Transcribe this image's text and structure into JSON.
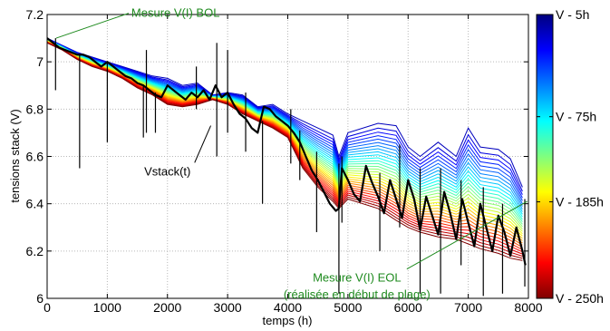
{
  "chart_data": {
    "type": "line",
    "xlabel": "temps (h)",
    "ylabel": "tensions stack (V)",
    "xlim": [
      0,
      8000
    ],
    "ylim": [
      6,
      7.2
    ],
    "xticks": [
      0,
      1000,
      2000,
      3000,
      4000,
      5000,
      6000,
      7000,
      8000
    ],
    "yticks": [
      6,
      6.2,
      6.4,
      6.6,
      6.8,
      7,
      7.2
    ],
    "xtick_labels": [
      "0",
      "1000",
      "2000",
      "3000",
      "4000",
      "5000",
      "6000",
      "7000",
      "8000"
    ],
    "ytick_labels": [
      "6",
      "6.2",
      "6.4",
      "6.6",
      "6.8",
      "7",
      "7.2"
    ],
    "grid": true,
    "colorbar": {
      "colormap": "jet",
      "position": "right",
      "labels": [
        "V - 5h",
        "V - 75h",
        "V - 185h",
        "V - 250h"
      ],
      "label_fractions": [
        0.0,
        0.36,
        0.66,
        1.0
      ]
    },
    "curve_family": {
      "count": 30,
      "top_name": "V - 5h",
      "bottom_name": "V - 250h",
      "top": {
        "x": [
          0,
          250,
          500,
          750,
          1000,
          1250,
          1500,
          1750,
          2000,
          2250,
          2500,
          2750,
          3000,
          3250,
          3500,
          3750,
          4000,
          4250,
          4500,
          4750,
          4850,
          5000,
          5500,
          5800,
          6000,
          6200,
          6500,
          6800,
          7000,
          7200,
          7500,
          7700,
          7900
        ],
        "y": [
          7.1,
          7.07,
          7.04,
          7.02,
          7.0,
          6.98,
          6.96,
          6.94,
          6.93,
          6.9,
          6.91,
          6.86,
          6.87,
          6.86,
          6.81,
          6.82,
          6.78,
          6.75,
          6.72,
          6.69,
          6.6,
          6.7,
          6.74,
          6.73,
          6.64,
          6.6,
          6.66,
          6.6,
          6.72,
          6.64,
          6.63,
          6.59,
          6.47
        ]
      },
      "bottom": {
        "x": [
          0,
          250,
          500,
          750,
          1000,
          1250,
          1500,
          1750,
          2000,
          2250,
          2500,
          2750,
          3000,
          3250,
          3500,
          3750,
          4000,
          4250,
          4500,
          4750,
          4850,
          5000,
          5500,
          5800,
          6000,
          6200,
          6500,
          6800,
          7000,
          7200,
          7500,
          7700,
          7900
        ],
        "y": [
          7.08,
          7.05,
          7.01,
          6.98,
          6.96,
          6.93,
          6.89,
          6.86,
          6.82,
          6.81,
          6.82,
          6.84,
          6.82,
          6.78,
          6.75,
          6.72,
          6.68,
          6.55,
          6.47,
          6.41,
          6.38,
          6.42,
          6.38,
          6.33,
          6.3,
          6.28,
          6.26,
          6.25,
          6.23,
          6.21,
          6.19,
          6.17,
          6.16
        ]
      }
    },
    "series": [
      {
        "name": "Vstack(t)",
        "color": "#000000",
        "x": [
          0,
          100,
          200,
          300,
          400,
          500,
          600,
          700,
          800,
          900,
          1000,
          1100,
          1200,
          1300,
          1400,
          1500,
          1600,
          1700,
          1800,
          1900,
          2000,
          2100,
          2200,
          2300,
          2400,
          2500,
          2600,
          2700,
          2800,
          2900,
          3000,
          3100,
          3200,
          3300,
          3400,
          3500,
          3600,
          3700,
          3800,
          3900,
          4000,
          4100,
          4200,
          4300,
          4400,
          4500,
          4600,
          4700,
          4800,
          4850,
          4900,
          5000,
          5100,
          5200,
          5300,
          5400,
          5500,
          5600,
          5700,
          5800,
          5900,
          6000,
          6100,
          6200,
          6300,
          6400,
          6500,
          6600,
          6700,
          6800,
          6900,
          7000,
          7100,
          7200,
          7300,
          7400,
          7500,
          7600,
          7700,
          7800,
          7900,
          7950
        ],
        "y": [
          7.1,
          7.08,
          7.06,
          7.05,
          7.04,
          7.03,
          7.03,
          7.02,
          7.0,
          6.98,
          7.0,
          6.98,
          6.96,
          6.94,
          6.93,
          6.91,
          6.9,
          6.88,
          6.86,
          6.85,
          6.9,
          6.88,
          6.86,
          6.84,
          6.87,
          6.85,
          6.88,
          6.84,
          6.9,
          6.85,
          6.87,
          6.82,
          6.78,
          6.76,
          6.72,
          6.7,
          6.81,
          6.8,
          6.77,
          6.75,
          6.73,
          6.7,
          6.66,
          6.6,
          6.54,
          6.5,
          6.45,
          6.4,
          6.37,
          6.38,
          6.55,
          6.5,
          6.44,
          6.41,
          6.56,
          6.49,
          6.43,
          6.36,
          6.5,
          6.42,
          6.34,
          6.5,
          6.42,
          6.29,
          6.43,
          6.35,
          6.27,
          6.45,
          6.36,
          6.25,
          6.42,
          6.32,
          6.22,
          6.4,
          6.3,
          6.2,
          6.35,
          6.28,
          6.18,
          6.3,
          6.2,
          6.14
        ]
      }
    ],
    "spikes": [
      {
        "x": 140,
        "low": 6.88,
        "high": 7.1
      },
      {
        "x": 540,
        "low": 6.55,
        "high": 7.03
      },
      {
        "x": 1000,
        "low": 6.66,
        "high": 7.0
      },
      {
        "x": 1600,
        "low": 6.68,
        "high": 6.9
      },
      {
        "x": 1650,
        "low": 6.7,
        "high": 7.05
      },
      {
        "x": 1800,
        "low": 6.7,
        "high": 6.87
      },
      {
        "x": 2480,
        "low": 6.8,
        "high": 6.98
      },
      {
        "x": 2820,
        "low": 6.6,
        "high": 7.08
      },
      {
        "x": 3000,
        "low": 6.7,
        "high": 7.05
      },
      {
        "x": 3300,
        "low": 6.62,
        "high": 6.87
      },
      {
        "x": 3580,
        "low": 6.4,
        "high": 6.75
      },
      {
        "x": 4050,
        "low": 6.57,
        "high": 6.8
      },
      {
        "x": 4200,
        "low": 6.5,
        "high": 6.71
      },
      {
        "x": 4480,
        "low": 6.28,
        "high": 6.62
      },
      {
        "x": 4850,
        "low": 6.02,
        "high": 6.57
      },
      {
        "x": 4900,
        "low": 6.32,
        "high": 6.6
      },
      {
        "x": 5530,
        "low": 6.2,
        "high": 6.53
      },
      {
        "x": 5860,
        "low": 6.3,
        "high": 6.65
      },
      {
        "x": 6200,
        "low": 6.02,
        "high": 6.55
      },
      {
        "x": 6540,
        "low": 6.02,
        "high": 6.55
      },
      {
        "x": 6880,
        "low": 6.14,
        "high": 6.5
      },
      {
        "x": 7250,
        "low": 6.01,
        "high": 6.47
      },
      {
        "x": 7570,
        "low": 6.02,
        "high": 6.4
      },
      {
        "x": 7940,
        "low": 6.05,
        "high": 6.42
      }
    ],
    "annotations": [
      {
        "text": "Mesure V(I) BOL",
        "color": "#1e8a1e",
        "tx": 1400,
        "ty": 7.19,
        "ax": 150,
        "ay": 7.1
      },
      {
        "text": "Vstack(t)",
        "color": "#000000",
        "tx": 2000,
        "ty": 6.52,
        "ax": 2720,
        "ay": 6.73
      },
      {
        "text": "Mesure V(I) EOL",
        "color": "#1e8a1e",
        "tx": 5150,
        "ty": 6.07,
        "ax": 7980,
        "ay": 6.41
      },
      {
        "text": "(réalisée en début de plage)",
        "color": "#1e8a1e",
        "tx": 5150,
        "ty": 6.0
      }
    ]
  }
}
